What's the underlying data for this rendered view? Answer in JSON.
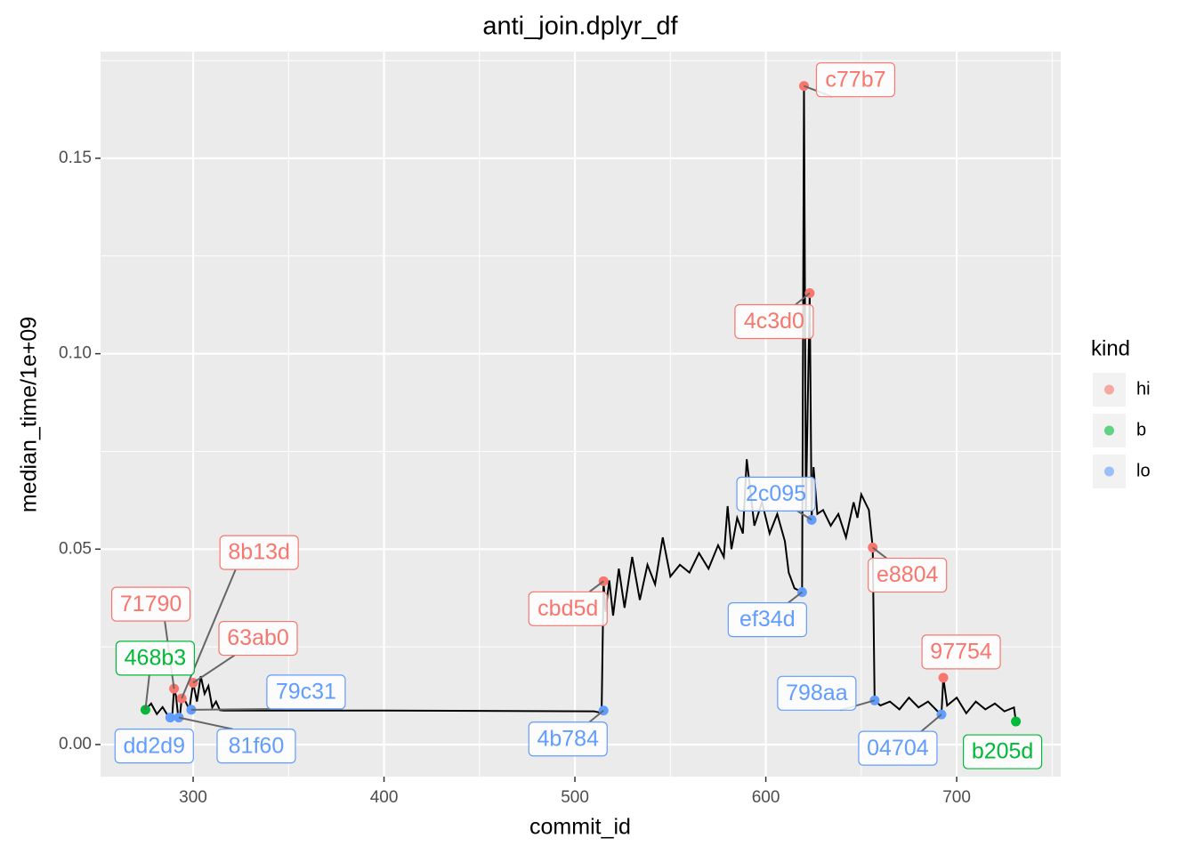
{
  "chart_data": {
    "type": "line",
    "title": "anti_join.dplyr_df",
    "x_label": "commit_id",
    "y_label": "median_time/1e+09",
    "legend_title": "kind",
    "grid": true,
    "xlim": [
      251.5,
      754.5
    ],
    "ylim": [
      -0.0082,
      0.1773
    ],
    "xticks": [
      300,
      400,
      500,
      600,
      700
    ],
    "yticks": [
      {
        "value": 0,
        "label": "0.00"
      },
      {
        "value": 0.05,
        "label": "0.05"
      },
      {
        "value": 0.1,
        "label": "0.10"
      },
      {
        "value": 0.15,
        "label": "0.15"
      }
    ],
    "line": {
      "color": "#000000",
      "x": [
        275,
        278,
        281,
        284,
        287,
        289,
        290,
        291,
        292,
        293,
        294,
        296,
        298,
        300,
        302,
        304,
        306,
        308,
        310,
        312,
        314,
        316,
        400,
        510,
        513,
        514,
        515,
        516,
        518,
        520,
        523,
        526,
        530,
        534,
        538,
        542,
        546,
        550,
        555,
        560,
        565,
        570,
        575,
        578,
        580,
        582,
        585,
        588,
        590,
        594,
        598,
        602,
        606,
        610,
        612,
        615,
        619,
        620,
        621,
        623,
        624,
        625,
        627,
        630,
        634,
        638,
        642,
        646,
        648,
        650,
        654,
        656,
        657,
        660,
        665,
        670,
        675,
        680,
        685,
        690,
        692,
        693,
        695,
        700,
        705,
        710,
        715,
        720,
        725,
        730,
        731
      ],
      "values": [
        0.0089,
        0.0105,
        0.0078,
        0.0096,
        0.0072,
        0.0069,
        0.0143,
        0.0125,
        0.008,
        0.0069,
        0.0118,
        0.011,
        0.009,
        0.0158,
        0.011,
        0.0175,
        0.013,
        0.015,
        0.0095,
        0.011,
        0.0088,
        0.0087,
        0.0087,
        0.0085,
        0.0082,
        0.0087,
        0.0418,
        0.034,
        0.042,
        0.033,
        0.045,
        0.035,
        0.048,
        0.037,
        0.046,
        0.041,
        0.053,
        0.043,
        0.046,
        0.044,
        0.049,
        0.045,
        0.051,
        0.048,
        0.061,
        0.05,
        0.058,
        0.054,
        0.073,
        0.056,
        0.062,
        0.054,
        0.059,
        0.052,
        0.044,
        0.04,
        0.039,
        0.1685,
        0.06,
        0.1155,
        0.0575,
        0.071,
        0.059,
        0.06,
        0.056,
        0.059,
        0.053,
        0.062,
        0.058,
        0.064,
        0.06,
        0.0504,
        0.0113,
        0.01,
        0.011,
        0.009,
        0.012,
        0.0095,
        0.011,
        0.0085,
        0.0077,
        0.0171,
        0.01,
        0.012,
        0.008,
        0.011,
        0.009,
        0.0105,
        0.0085,
        0.0095,
        0.0059
      ]
    },
    "series": [
      {
        "name": "hi",
        "color": "#F8766D",
        "x": [
          290,
          294,
          300,
          515,
          620,
          623,
          656,
          693
        ],
        "values": [
          0.0143,
          0.0118,
          0.0158,
          0.0418,
          0.1685,
          0.1155,
          0.0504,
          0.0171
        ],
        "labels": [
          "71790",
          "8b13d",
          "63ab0",
          "cbd5d",
          "c77b7",
          "4c3d0",
          "e8804",
          "97754"
        ]
      },
      {
        "name": "b",
        "color": "#00BA38",
        "x": [
          275,
          731
        ],
        "values": [
          0.0089,
          0.0059
        ],
        "labels": [
          "468b3",
          "b205d"
        ]
      },
      {
        "name": "lo",
        "color": "#619CFF",
        "x": [
          288,
          292.5,
          299,
          515,
          624,
          619,
          657,
          692
        ],
        "values": [
          0.0069,
          0.0069,
          0.0089,
          0.0087,
          0.0575,
          0.039,
          0.0113,
          0.0077
        ],
        "labels": [
          "dd2d9",
          "81f60",
          "79c31",
          "4b784",
          "2c095",
          "ef34d",
          "798aa",
          "04704"
        ]
      }
    ]
  }
}
